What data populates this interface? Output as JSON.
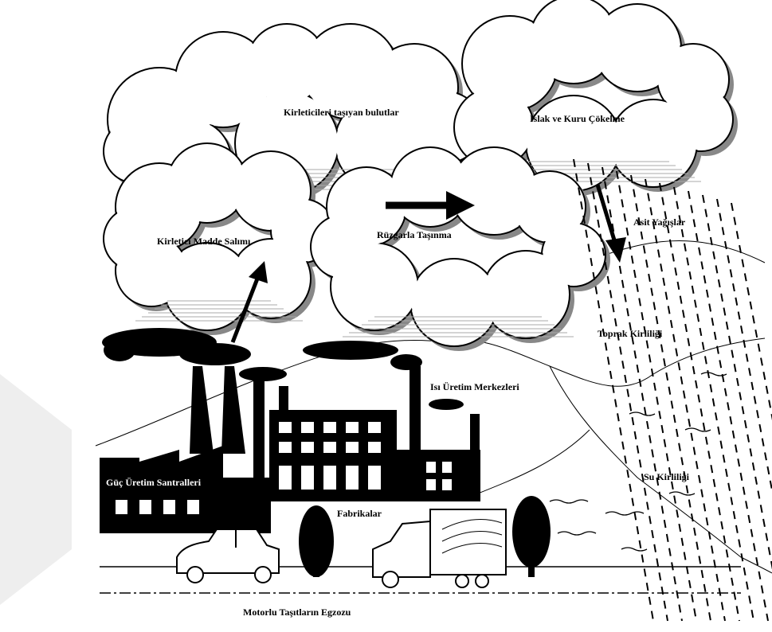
{
  "labels": {
    "clouds_carrying": "Kirleticileri taşıyan bulutlar",
    "deposition": "Islak ve Kuru Çökelme",
    "acid_rain": "Asit Yağışlar",
    "emission": "Kirletici Madde Salımı",
    "wind_transport": "Rüzgarla Taşınma",
    "soil_pollution": "Toprak Kirliliği",
    "heat_plants": "Isı Üretim Merkezleri",
    "power_plants": "Güç Üretim Santralleri",
    "water_pollution": "Su Kirliliği",
    "factories": "Fabrikalar",
    "vehicle_exhaust": "Motorlu Taşıtların Egzozu"
  }
}
